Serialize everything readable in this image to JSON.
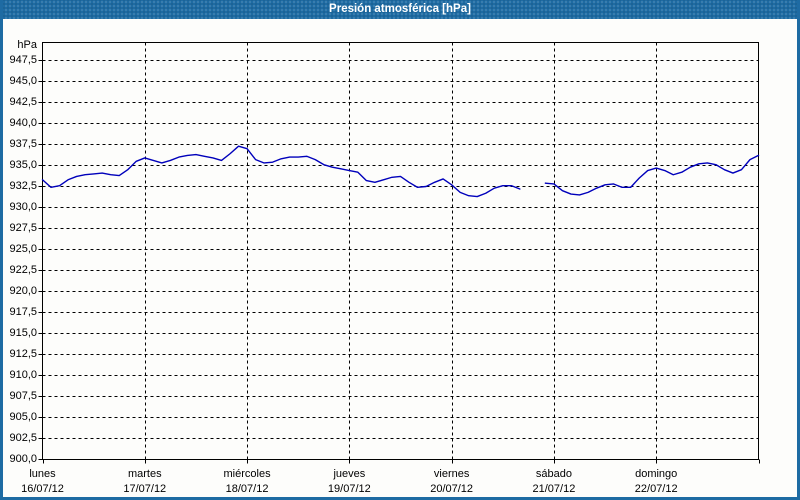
{
  "window": {
    "title": "Presión atmosférica [hPa]"
  },
  "colors": {
    "frame": "#1e6ba3",
    "titlebar": "#1e6ba3",
    "title_text": "#ffffff",
    "plot_background": "#fdfdfb",
    "grid": "#000000",
    "line": "#0000bb"
  },
  "chart_data": {
    "type": "line",
    "title": "Presión atmosférica [hPa]",
    "ylabel": "hPa",
    "ylim": [
      900.0,
      947.5
    ],
    "y_tick_step": 2.5,
    "y_tick_labels": [
      "947,5",
      "945,0",
      "942,5",
      "940,0",
      "937,5",
      "935,0",
      "932,5",
      "930,0",
      "927,5",
      "925,0",
      "922,5",
      "920,0",
      "917,5",
      "915,0",
      "912,5",
      "910,0",
      "907,5",
      "905,0",
      "902,5",
      "900,0"
    ],
    "x_days": [
      {
        "name": "lunes",
        "date": "16/07/12"
      },
      {
        "name": "martes",
        "date": "17/07/12"
      },
      {
        "name": "miércoles",
        "date": "18/07/12"
      },
      {
        "name": "jueves",
        "date": "19/07/12"
      },
      {
        "name": "viernes",
        "date": "20/07/12"
      },
      {
        "name": "sábado",
        "date": "21/07/12"
      },
      {
        "name": "domingo",
        "date": "22/07/12"
      }
    ],
    "grid": true,
    "legend_position": "none",
    "series": [
      {
        "name": "Presión atmosférica",
        "unit": "hPa",
        "color": "#0000bb",
        "sample_interval_hours": 2,
        "note_gap": "missing data Friday ~17:00-20:00",
        "values": [
          933.3,
          932.4,
          932.6,
          933.3,
          933.7,
          933.9,
          934.0,
          934.1,
          933.9,
          933.8,
          934.5,
          935.5,
          935.9,
          935.6,
          935.3,
          935.6,
          936.0,
          936.2,
          936.3,
          936.1,
          935.9,
          935.6,
          936.4,
          937.3,
          937.0,
          935.7,
          935.3,
          935.4,
          935.8,
          936.0,
          936.0,
          936.1,
          935.7,
          935.1,
          934.8,
          934.6,
          934.4,
          934.2,
          933.2,
          933.0,
          933.3,
          933.6,
          933.7,
          933.0,
          932.4,
          932.5,
          933.0,
          933.4,
          932.7,
          931.8,
          931.4,
          931.3,
          931.7,
          932.3,
          932.6,
          932.6,
          932.2,
          null,
          null,
          932.9,
          932.8,
          932.0,
          931.6,
          931.5,
          931.8,
          932.3,
          932.7,
          932.8,
          932.4,
          932.4,
          933.5,
          934.4,
          934.7,
          934.4,
          933.9,
          934.2,
          934.8,
          935.2,
          935.3,
          935.1,
          934.5,
          934.1,
          934.5,
          935.7,
          936.2
        ]
      }
    ]
  }
}
